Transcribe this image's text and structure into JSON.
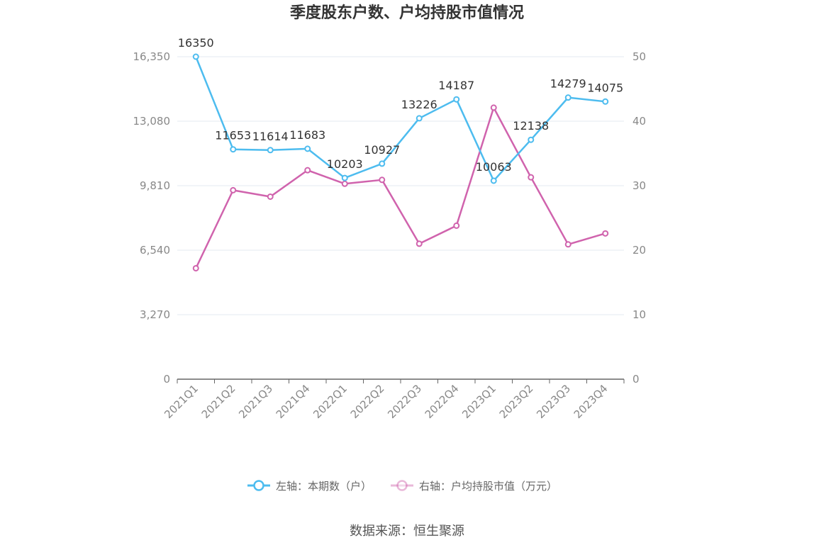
{
  "chart_data": {
    "type": "line",
    "title": "季度股东户数、户均持股市值情况",
    "categories": [
      "2021Q1",
      "2021Q2",
      "2021Q3",
      "2021Q4",
      "2022Q1",
      "2022Q2",
      "2022Q3",
      "2022Q4",
      "2023Q1",
      "2023Q2",
      "2023Q3",
      "2023Q4"
    ],
    "series": [
      {
        "name": "左轴：本期数（户）",
        "axis": "left",
        "color": "#4dbcef",
        "values": [
          16350,
          11653,
          11614,
          11683,
          10203,
          10927,
          13226,
          14187,
          10063,
          12138,
          14279,
          14075
        ],
        "labels": [
          "16350",
          "11653",
          "11614",
          "11683",
          "10203",
          "10927",
          "13226",
          "14187",
          "10063",
          "12138",
          "14279",
          "14075"
        ]
      },
      {
        "name": "右轴：户均持股市值（万元）",
        "axis": "right",
        "color": "#d063ad",
        "values": [
          17.2,
          29.3,
          28.3,
          32.4,
          30.3,
          30.9,
          21.0,
          23.8,
          42.1,
          31.3,
          20.9,
          22.6
        ]
      }
    ],
    "left_axis": {
      "min": 0,
      "max": 16350,
      "ticks": [
        0,
        3270,
        6540,
        9810,
        13080,
        16350
      ],
      "tick_labels": [
        "0",
        "3,270",
        "6,540",
        "9,810",
        "13,080",
        "16,350"
      ]
    },
    "right_axis": {
      "min": 0,
      "max": 50,
      "ticks": [
        0,
        10,
        20,
        30,
        40,
        50
      ],
      "tick_labels": [
        "0",
        "10",
        "20",
        "30",
        "40",
        "50"
      ]
    },
    "grid": true,
    "legend_position": "bottom"
  },
  "source": "数据来源：恒生聚源"
}
